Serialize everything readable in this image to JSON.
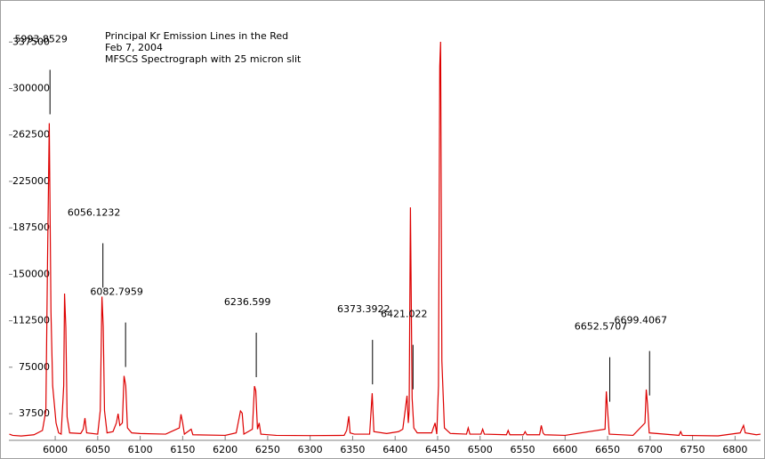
{
  "chart_data": {
    "type": "line",
    "title": "Principal Kr Emission Lines in the Red",
    "subtitle": "Feb 7, 2004",
    "caption": "MFSCS Spectrograph with 25 micron slit",
    "color": "#dd0000",
    "xlim": [
      5945.5,
      6830
    ],
    "ylim": [
      16000,
      370000
    ],
    "xticks": [
      6000,
      6050,
      6100,
      6150,
      6200,
      6250,
      6300,
      6350,
      6400,
      6450,
      6500,
      6550,
      6600,
      6650,
      6700,
      6750,
      6800
    ],
    "yticks": [
      37500,
      75000,
      112500,
      150000,
      187500,
      225000,
      262500,
      300000,
      337500
    ],
    "annotations": [
      5993.8529,
      6056.1232,
      6082.7959,
      6236.599,
      6373.3922,
      6421.022,
      6652.5707,
      6699.4067
    ],
    "x": [
      5946,
      5950,
      5960,
      5975,
      5985,
      5989,
      5991,
      5993,
      5995,
      5997,
      5999,
      6001,
      6004,
      6007,
      6010,
      6011,
      6012.5,
      6014,
      6017,
      6030,
      6033,
      6035,
      6037,
      6050,
      6053,
      6055,
      6056.5,
      6058,
      6061,
      6068,
      6072,
      6074,
      6076,
      6079,
      6081,
      6083,
      6085,
      6090,
      6100,
      6130,
      6146,
      6148,
      6150,
      6152,
      6160,
      6162,
      6200,
      6213,
      6218,
      6220,
      6222,
      6232,
      6234.5,
      6236,
      6238,
      6240,
      6242,
      6260,
      6300,
      6340,
      6343,
      6345.5,
      6347,
      6352,
      6370,
      6373,
      6375,
      6390,
      6404,
      6409,
      6414,
      6415.5,
      6416.5,
      6418,
      6420,
      6422,
      6426,
      6443,
      6447,
      6449,
      6451,
      6452.5,
      6453.5,
      6455,
      6458,
      6465,
      6484,
      6486,
      6488,
      6501,
      6503,
      6505,
      6531,
      6533,
      6535,
      6551,
      6553,
      6555,
      6570,
      6572,
      6574,
      6576,
      6600,
      6647,
      6648.5,
      6650,
      6652,
      6680,
      6694,
      6695.5,
      6697,
      6699,
      6734,
      6736,
      6738,
      6780,
      6806,
      6810,
      6812,
      6825,
      6830
    ],
    "values": [
      21000,
      20000,
      19500,
      20500,
      24000,
      40000,
      163000,
      272000,
      120000,
      60000,
      45000,
      30000,
      22000,
      21000,
      60000,
      134500,
      107000,
      35000,
      22000,
      21500,
      25000,
      34000,
      22000,
      21000,
      40000,
      132000,
      108000,
      40000,
      22000,
      23000,
      30000,
      37500,
      28000,
      30000,
      68000,
      60000,
      26000,
      22000,
      21500,
      21000,
      26000,
      37000,
      30000,
      21000,
      25000,
      20500,
      20000,
      22000,
      39700,
      38000,
      21000,
      25000,
      59800,
      56000,
      25000,
      30000,
      21000,
      20000,
      19800,
      20000,
      24000,
      35400,
      22000,
      21000,
      21000,
      54000,
      23000,
      21500,
      23000,
      25000,
      52000,
      30000,
      40000,
      204000,
      50000,
      26000,
      22000,
      22000,
      30000,
      21000,
      60000,
      318000,
      337700,
      80000,
      26000,
      21500,
      21000,
      26000,
      21000,
      21000,
      25000,
      21000,
      20500,
      24000,
      20500,
      20500,
      23000,
      20500,
      20500,
      28000,
      22000,
      20500,
      20000,
      25000,
      55500,
      40000,
      21000,
      20000,
      30000,
      57000,
      45000,
      22000,
      20000,
      23000,
      20000,
      19600,
      22000,
      28000,
      22000,
      20500,
      21000
    ]
  }
}
